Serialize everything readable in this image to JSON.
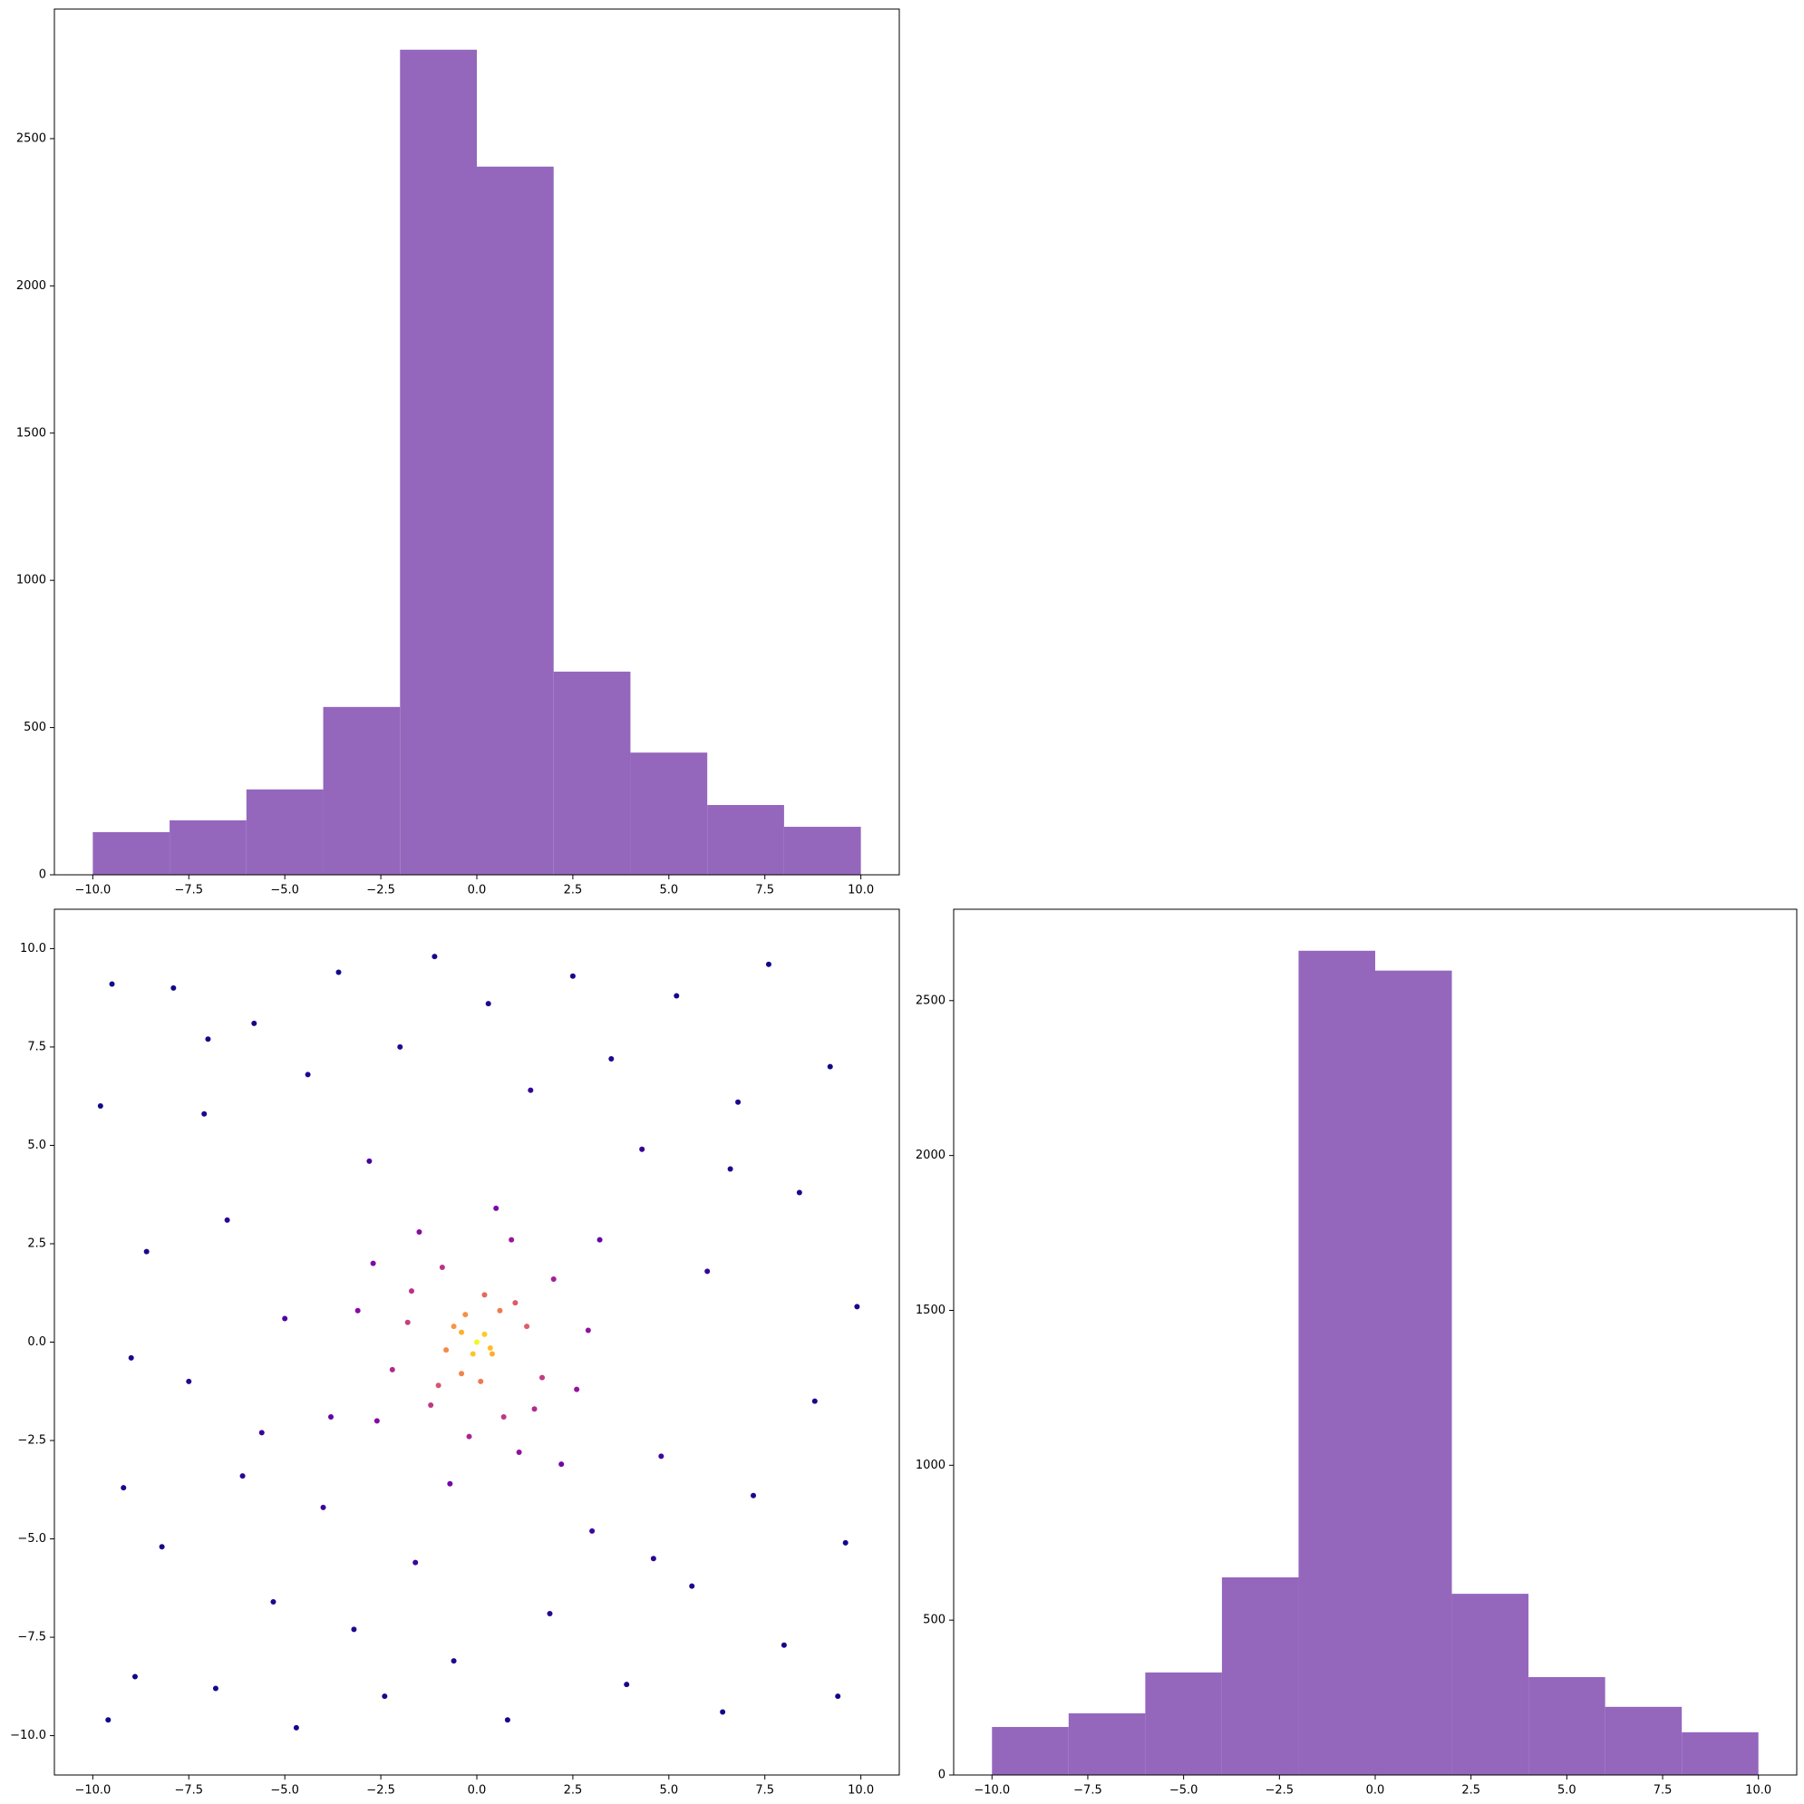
{
  "chart_data": [
    {
      "type": "histogram",
      "bins": [
        -10,
        -8,
        -6,
        -4,
        -2,
        0,
        2,
        4,
        6,
        8,
        10
      ],
      "counts": [
        145,
        185,
        290,
        570,
        2802,
        2405,
        690,
        415,
        237,
        163
      ],
      "color": "#9467bd",
      "xlim": [
        -11,
        11
      ],
      "ylim": [
        0,
        2940
      ],
      "xticks": [
        {
          "value": -10,
          "label": "−10.0"
        },
        {
          "value": -7.5,
          "label": "−7.5"
        },
        {
          "value": -5,
          "label": "−5.0"
        },
        {
          "value": -2.5,
          "label": "−2.5"
        },
        {
          "value": 0,
          "label": "0.0"
        },
        2.5,
        {
          "value": 5,
          "label": "5.0"
        },
        7.5,
        {
          "value": 10,
          "label": "10.0"
        }
      ],
      "yticks": [
        0,
        500,
        1000,
        1500,
        2000,
        2500
      ]
    },
    {
      "type": "scatter",
      "colormap": "plasma",
      "x": [
        -9.8,
        -9.5,
        -9.2,
        -8.9,
        -8.6,
        -8.2,
        -7.9,
        -7.5,
        -7.1,
        -6.8,
        -6.5,
        -6.1,
        -5.8,
        -5.3,
        -5.0,
        -4.7,
        -4.4,
        -4.0,
        -3.6,
        -3.2,
        -2.8,
        -2.4,
        -2.0,
        -1.6,
        -1.1,
        -0.6,
        0.3,
        0.8,
        1.4,
        1.9,
        2.5,
        3.0,
        3.5,
        3.9,
        4.3,
        4.8,
        5.2,
        5.6,
        6.0,
        6.4,
        6.8,
        7.2,
        7.6,
        8.0,
        8.4,
        8.8,
        9.2,
        9.6,
        9.9,
        -9.6,
        -9.0,
        9.4,
        -3.8,
        4.6,
        -7.0,
        6.6,
        -5.6,
        2.2,
        -2.7,
        3.2,
        -1.8,
        -1.2,
        -0.9,
        -0.4,
        0.2,
        0.7,
        1.3,
        1.7,
        2.0,
        -2.2,
        -1.5,
        0.9,
        1.1,
        -0.2,
        2.6,
        -2.6,
        -0.6,
        0.4,
        -0.3,
        0.6,
        -0.8,
        0.1,
        0.0,
        0.2,
        -0.1,
        0.35,
        -0.4,
        1.0,
        -1.0,
        1.5,
        -1.7,
        2.9,
        -3.1,
        0.5,
        -0.7
      ],
      "y": [
        6.0,
        9.1,
        -3.7,
        -8.5,
        2.3,
        -5.2,
        9.0,
        -1.0,
        5.8,
        -8.8,
        3.1,
        -3.4,
        8.1,
        -6.6,
        0.6,
        -9.8,
        6.8,
        -4.2,
        9.4,
        -7.3,
        4.6,
        -9.0,
        7.5,
        -5.6,
        9.8,
        -8.1,
        8.6,
        -9.6,
        6.4,
        -6.9,
        9.3,
        -4.8,
        7.2,
        -8.7,
        4.9,
        -2.9,
        8.8,
        -6.2,
        1.8,
        -9.4,
        6.1,
        -3.9,
        9.6,
        -7.7,
        3.8,
        -1.5,
        7.0,
        -5.1,
        0.9,
        -9.6,
        -0.4,
        -9.0,
        -1.9,
        -5.5,
        7.7,
        4.4,
        -2.3,
        -3.1,
        2.0,
        2.6,
        0.5,
        -1.6,
        1.9,
        -0.8,
        1.2,
        -1.9,
        0.4,
        -0.9,
        1.6,
        -0.7,
        2.8,
        2.6,
        -2.8,
        -2.4,
        -1.2,
        -2.0,
        0.4,
        -0.3,
        0.7,
        0.8,
        -0.2,
        -1.0,
        0.0,
        0.2,
        -0.3,
        -0.15,
        0.25,
        1.0,
        -1.1,
        -1.7,
        1.3,
        0.3,
        0.8,
        3.4,
        -3.6
      ],
      "xlim": [
        -11,
        11
      ],
      "ylim": [
        -11,
        11
      ],
      "xticks": [
        {
          "value": -10,
          "label": "−10.0"
        },
        {
          "value": -7.5,
          "label": "−7.5"
        },
        {
          "value": -5,
          "label": "−5.0"
        },
        {
          "value": -2.5,
          "label": "−2.5"
        },
        {
          "value": 0,
          "label": "0.0"
        },
        2.5,
        {
          "value": 5,
          "label": "5.0"
        },
        7.5,
        {
          "value": 10,
          "label": "10.0"
        }
      ],
      "yticks": [
        {
          "value": -10,
          "label": "−10.0"
        },
        {
          "value": -7.5,
          "label": "−7.5"
        },
        {
          "value": -5,
          "label": "−5.0"
        },
        {
          "value": -2.5,
          "label": "−2.5"
        },
        {
          "value": 0,
          "label": "0.0"
        },
        2.5,
        {
          "value": 5,
          "label": "5.0"
        },
        7.5,
        {
          "value": 10,
          "label": "10.0"
        }
      ]
    },
    {
      "type": "histogram",
      "bins": [
        -10,
        -8,
        -6,
        -4,
        -2,
        0,
        2,
        4,
        6,
        8,
        10
      ],
      "counts": [
        155,
        199,
        331,
        638,
        2661,
        2597,
        585,
        316,
        220,
        138
      ],
      "color": "#9467bd",
      "xlim": [
        -11,
        11
      ],
      "ylim": [
        0,
        2795
      ],
      "xticks": [
        {
          "value": -10,
          "label": "−10.0"
        },
        {
          "value": -7.5,
          "label": "−7.5"
        },
        {
          "value": -5,
          "label": "−5.0"
        },
        {
          "value": -2.5,
          "label": "−2.5"
        },
        {
          "value": 0,
          "label": "0.0"
        },
        2.5,
        {
          "value": 5,
          "label": "5.0"
        },
        7.5,
        {
          "value": 10,
          "label": "10.0"
        }
      ],
      "yticks": [
        0,
        500,
        1000,
        1500,
        2000,
        2500
      ]
    }
  ]
}
